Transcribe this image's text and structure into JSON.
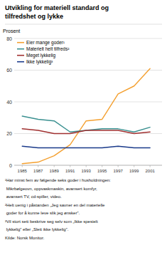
{
  "chart_data": {
    "type": "line",
    "title": [
      "Utvikling for materiell standard og",
      "tilfredshet og lykke"
    ],
    "y_label": "Prosent",
    "x": [
      1985,
      1987,
      1989,
      1991,
      1993,
      1995,
      1997,
      1999,
      2001
    ],
    "series": [
      {
        "name": "Eier mange goder¹",
        "color": "#f4a030",
        "values": [
          1,
          2,
          6,
          13,
          28,
          29,
          45,
          50,
          61
        ]
      },
      {
        "name": "Materielt helt tilfreds²",
        "color": "#3a9090",
        "values": [
          31,
          29,
          28,
          21,
          22,
          23,
          23,
          21,
          24
        ]
      },
      {
        "name": "Meget lykkelig",
        "color": "#a03030",
        "values": [
          23,
          22,
          20,
          20,
          22,
          22,
          22,
          20,
          21
        ]
      },
      {
        "name": "Ikke lykkelig³",
        "color": "#1a3a8a",
        "values": [
          12,
          11,
          11,
          11,
          11,
          11,
          12,
          11,
          11
        ]
      }
    ],
    "xlim": [
      1984,
      2002.5
    ],
    "xticks": [
      1985,
      1987,
      1989,
      1991,
      1993,
      1995,
      1997,
      1999,
      2001
    ],
    "ylim": [
      0,
      80
    ],
    "yticks": [
      0,
      20,
      40,
      60,
      80
    ],
    "grid": true,
    "legend": "upper left",
    "annotations": [
      "¹Har minst fem av følgende seks goder i husholdningen:",
      " Mikrbølgeovn, oppvaskmaskin, avansert komfyr,",
      " avansert TV, cd-spiller, video.",
      "²Helt uenig i påstanden „Jeg savner en del materielle",
      " goder for å kunne leve slik jeg ønsker”.",
      "³Vil stort sett beskrive seg selv som „Ikke spesielt",
      " lykkelig” eller „Slett ikke lykkelig”.",
      "Kilde: Norsk Monitor."
    ]
  }
}
